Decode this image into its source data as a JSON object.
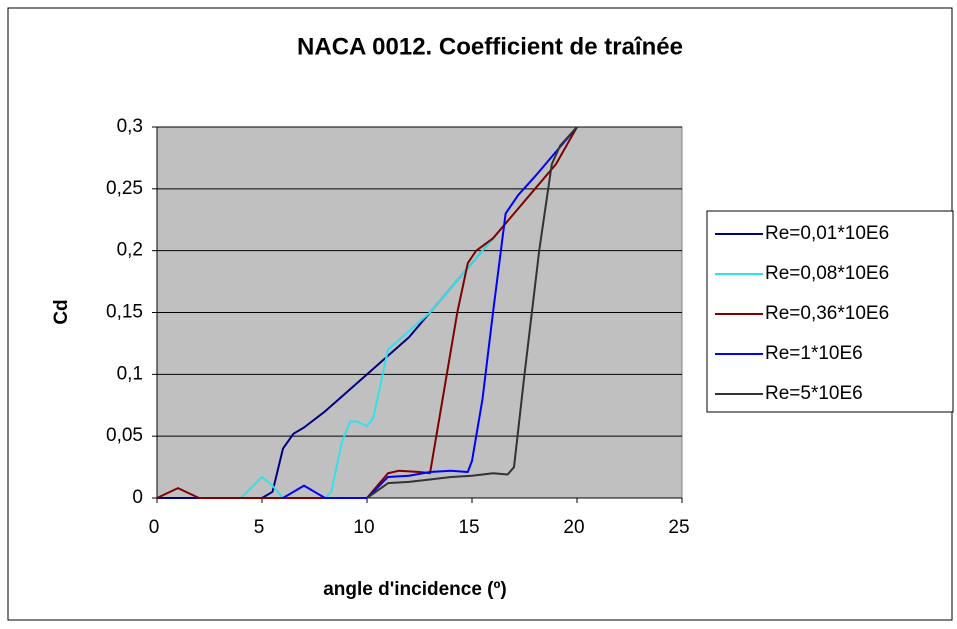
{
  "chart_data": {
    "type": "line",
    "title": "NACA 0012. Coefficient de traînée",
    "xlabel": "angle d'incidence (º)",
    "ylabel": "Cd",
    "xlim": [
      0,
      25
    ],
    "xticks": [
      0,
      5,
      10,
      15,
      20,
      25
    ],
    "ylim": [
      0,
      0.3
    ],
    "yticks": [
      0,
      {
        "value": 0.05,
        "label": "0,05"
      },
      {
        "value": 0.1,
        "label": "0,1"
      },
      {
        "value": 0.15,
        "label": "0,15"
      },
      {
        "value": 0.2,
        "label": "0,2"
      },
      {
        "value": 0.25,
        "label": "0,25"
      },
      {
        "value": 0.3,
        "label": "0,3"
      }
    ],
    "grid": true,
    "legend": "right",
    "series": [
      {
        "name": "Re=0,01*10E6",
        "color": "#000080",
        "x": [
          0,
          1,
          2,
          3,
          4,
          5,
          5.5,
          6,
          6.5,
          7,
          8,
          9,
          10,
          11,
          12,
          13,
          14,
          15,
          16
        ],
        "values": [
          0,
          0,
          0,
          0,
          0,
          0,
          0.005,
          0.04,
          0.052,
          0.057,
          0.07,
          0.085,
          0.1,
          0.115,
          0.13,
          0.15,
          0.17,
          0.19,
          0.21
        ]
      },
      {
        "name": "Re=0,08*10E6",
        "color": "#33e0e8",
        "x": [
          4,
          5,
          5.5,
          6,
          7,
          8,
          8.3,
          8.8,
          9.2,
          9.5,
          10,
          10.3,
          11,
          12,
          13,
          14,
          15,
          16
        ],
        "values": [
          0,
          0.017,
          0.01,
          0,
          0,
          0,
          0.005,
          0.045,
          0.062,
          0.062,
          0.058,
          0.065,
          0.12,
          0.135,
          0.15,
          0.17,
          0.19,
          0.21
        ]
      },
      {
        "name": "Re=0,36*10E6",
        "color": "#800000",
        "x": [
          0,
          1,
          2,
          10,
          11,
          11.5,
          12.5,
          13,
          13.3,
          13.8,
          14.3,
          14.8,
          15.2,
          16,
          17.5,
          19,
          20
        ],
        "values": [
          0,
          0.008,
          0,
          0,
          0.02,
          0.022,
          0.021,
          0.02,
          0.05,
          0.1,
          0.15,
          0.19,
          0.2,
          0.21,
          0.24,
          0.27,
          0.3
        ]
      },
      {
        "name": "Re=1*10E6",
        "color": "#0000ff",
        "x": [
          6,
          7,
          8,
          10,
          11,
          12,
          13,
          14,
          14.8,
          15,
          15.5,
          16,
          16.6,
          17.2,
          18,
          19,
          20
        ],
        "values": [
          0,
          0.01,
          0,
          0,
          0.017,
          0.018,
          0.021,
          0.022,
          0.021,
          0.03,
          0.08,
          0.15,
          0.23,
          0.245,
          0.26,
          0.28,
          0.3
        ]
      },
      {
        "name": "Re=5*10E6",
        "color": "#333333",
        "x": [
          10,
          11,
          12,
          13,
          14,
          15,
          16,
          16.7,
          17,
          17.5,
          18.2,
          18.8,
          19.2,
          20
        ],
        "values": [
          0,
          0.012,
          0.013,
          0.015,
          0.017,
          0.018,
          0.02,
          0.019,
          0.025,
          0.1,
          0.2,
          0.27,
          0.285,
          0.3
        ]
      }
    ]
  }
}
